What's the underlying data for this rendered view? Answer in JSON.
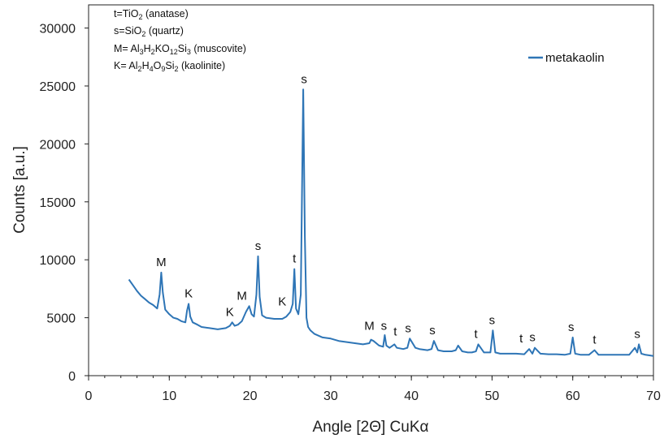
{
  "chart_data": {
    "type": "line",
    "title": "",
    "xlabel": "Angle [2Θ] CuKα",
    "ylabel": "Counts [a.u.]",
    "xlim": [
      0,
      70
    ],
    "ylim": [
      0,
      32000
    ],
    "xticks": [
      0,
      10,
      20,
      30,
      40,
      50,
      60,
      70
    ],
    "yticks": [
      0,
      5000,
      10000,
      15000,
      20000,
      25000,
      30000
    ],
    "grid": false,
    "legend_position": "top-right",
    "series": [
      {
        "name": "metakaolin",
        "color": "#2e75b6",
        "x": [
          5.0,
          5.5,
          6.0,
          6.5,
          7.0,
          7.5,
          8.0,
          8.5,
          8.8,
          9.0,
          9.2,
          9.5,
          10.0,
          10.5,
          11.0,
          11.5,
          12.0,
          12.2,
          12.4,
          12.6,
          12.9,
          13.5,
          14.0,
          15.0,
          16.0,
          17.0,
          17.5,
          17.8,
          18.1,
          18.5,
          19.0,
          19.5,
          19.9,
          20.2,
          20.5,
          20.8,
          21.0,
          21.2,
          21.5,
          22.0,
          23.0,
          24.0,
          24.5,
          25.0,
          25.3,
          25.5,
          25.7,
          26.0,
          26.3,
          26.6,
          26.8,
          27.0,
          27.2,
          27.5,
          28.0,
          29.0,
          30.0,
          31.0,
          32.0,
          33.0,
          34.0,
          34.8,
          35.0,
          35.3,
          36.0,
          36.5,
          36.7,
          36.9,
          37.3,
          37.9,
          38.2,
          39.0,
          39.5,
          39.8,
          40.5,
          41.0,
          42.0,
          42.5,
          42.8,
          43.3,
          44.0,
          45.0,
          45.5,
          45.8,
          46.3,
          47.0,
          47.5,
          48.0,
          48.3,
          49.0,
          49.8,
          50.1,
          50.4,
          51.0,
          52.0,
          53.0,
          54.0,
          54.6,
          55.0,
          55.3,
          56.0,
          57.0,
          58.0,
          59.0,
          59.7,
          60.0,
          60.3,
          61.0,
          62.0,
          62.7,
          63.2,
          64.0,
          65.0,
          66.0,
          67.0,
          67.7,
          68.0,
          68.2,
          68.5,
          69.0,
          70.0
        ],
        "y": [
          8300,
          7800,
          7300,
          6900,
          6600,
          6300,
          6100,
          5800,
          7000,
          8900,
          7200,
          5700,
          5300,
          5000,
          4900,
          4700,
          4600,
          5600,
          6200,
          5100,
          4600,
          4400,
          4200,
          4100,
          4000,
          4100,
          4300,
          4600,
          4300,
          4400,
          4700,
          5500,
          6000,
          5300,
          5100,
          7000,
          10300,
          6800,
          5200,
          5000,
          4900,
          4900,
          5100,
          5500,
          6200,
          9200,
          5800,
          5300,
          7000,
          24700,
          12000,
          5000,
          4200,
          3900,
          3600,
          3300,
          3200,
          3000,
          2900,
          2800,
          2700,
          2800,
          3100,
          3000,
          2600,
          2500,
          3500,
          2600,
          2400,
          2700,
          2400,
          2300,
          2400,
          3200,
          2400,
          2300,
          2200,
          2300,
          3000,
          2200,
          2100,
          2100,
          2200,
          2600,
          2100,
          2000,
          2000,
          2100,
          2700,
          2000,
          2000,
          3900,
          2000,
          1900,
          1900,
          1900,
          1850,
          2300,
          1900,
          2400,
          1900,
          1850,
          1850,
          1800,
          1900,
          3300,
          1900,
          1800,
          1800,
          2200,
          1800,
          1800,
          1800,
          1800,
          1800,
          2400,
          2000,
          2700,
          1900,
          1800,
          1700
        ]
      }
    ],
    "peak_labels": [
      {
        "x": 9.0,
        "y": 8900,
        "text": "M"
      },
      {
        "x": 12.4,
        "y": 6200,
        "text": "K"
      },
      {
        "x": 17.5,
        "y": 4600,
        "text": "K"
      },
      {
        "x": 19.0,
        "y": 6000,
        "text": "M"
      },
      {
        "x": 21.0,
        "y": 10300,
        "text": "s"
      },
      {
        "x": 24.0,
        "y": 5500,
        "text": "K"
      },
      {
        "x": 25.5,
        "y": 9200,
        "text": "t"
      },
      {
        "x": 26.7,
        "y": 24700,
        "text": "s"
      },
      {
        "x": 34.8,
        "y": 3400,
        "text": "M"
      },
      {
        "x": 36.6,
        "y": 3400,
        "text": "s"
      },
      {
        "x": 38.0,
        "y": 2900,
        "text": "t"
      },
      {
        "x": 39.6,
        "y": 3200,
        "text": "s"
      },
      {
        "x": 42.6,
        "y": 3000,
        "text": "s"
      },
      {
        "x": 48.0,
        "y": 2700,
        "text": "t"
      },
      {
        "x": 50.0,
        "y": 3900,
        "text": "s"
      },
      {
        "x": 53.6,
        "y": 2300,
        "text": "t"
      },
      {
        "x": 55.0,
        "y": 2400,
        "text": "s"
      },
      {
        "x": 59.8,
        "y": 3300,
        "text": "s"
      },
      {
        "x": 62.7,
        "y": 2200,
        "text": "t"
      },
      {
        "x": 68.0,
        "y": 2700,
        "text": "s"
      }
    ],
    "annotation_lines": [
      {
        "key": "t=TiO",
        "sub1": "2",
        "rest": " (anatase)"
      },
      {
        "key": "s=SiO",
        "sub1": "2",
        "rest": " (quartz)"
      },
      {
        "key": "M=  Al",
        "formula": [
          [
            "3",
            ""
          ],
          [
            "H",
            ""
          ],
          [
            "2",
            ""
          ],
          [
            "KO",
            ""
          ],
          [
            "12",
            ""
          ],
          [
            "Si",
            ""
          ],
          [
            "3",
            ""
          ]
        ],
        "rest": " (muscovite)"
      },
      {
        "key": "K= Al",
        "formula": [
          [
            "2",
            ""
          ],
          [
            "H",
            ""
          ],
          [
            "4",
            ""
          ],
          [
            "O",
            ""
          ],
          [
            "9",
            ""
          ],
          [
            "Si",
            ""
          ],
          [
            "2",
            ""
          ]
        ],
        "rest": " (kaolinite)"
      }
    ]
  }
}
